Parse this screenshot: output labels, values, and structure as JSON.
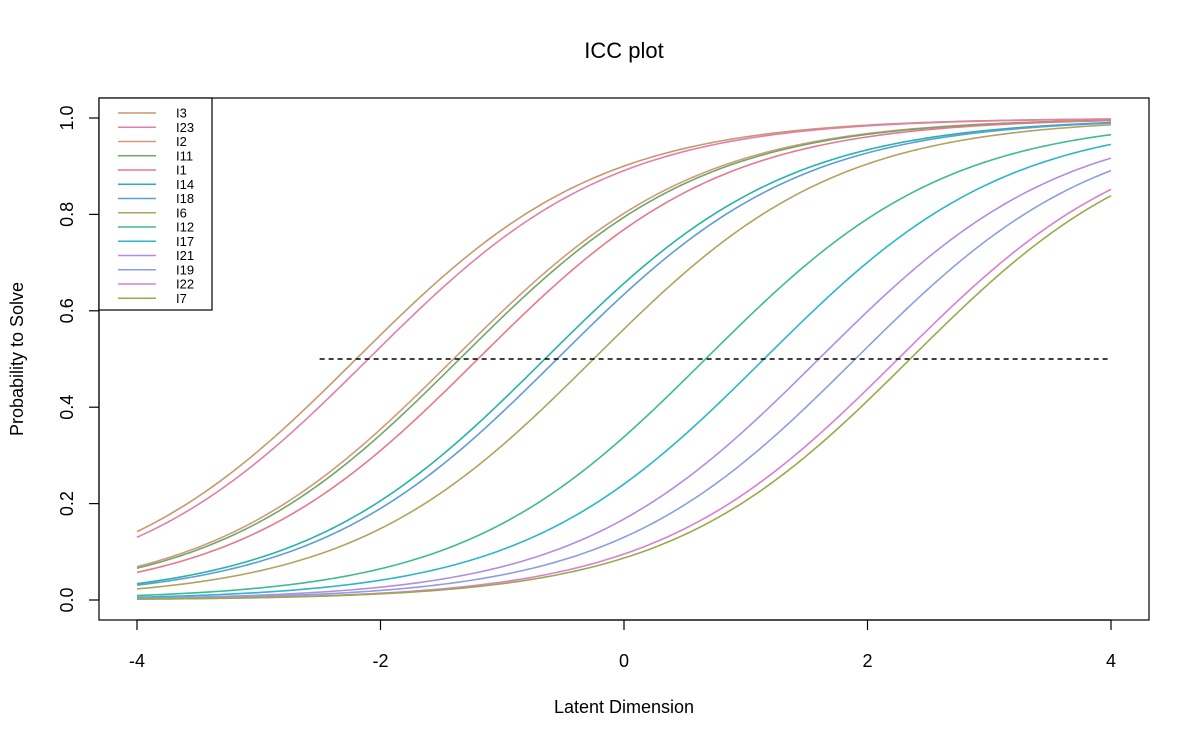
{
  "chart_data": {
    "type": "line",
    "title": "ICC plot",
    "xlabel": "Latent Dimension",
    "ylabel": "Probability to Solve",
    "xlim": [
      -4,
      4
    ],
    "ylim": [
      0,
      1
    ],
    "x_ticks": [
      -4,
      -2,
      0,
      2,
      4
    ],
    "y_ticks": [
      0.0,
      0.2,
      0.4,
      0.6,
      0.8,
      1.0
    ],
    "x_tick_labels": [
      "-4",
      "-2",
      "0",
      "2",
      "4"
    ],
    "y_tick_labels": [
      "0.0",
      "0.2",
      "0.4",
      "0.6",
      "0.8",
      "1.0"
    ],
    "model": "Rasch item characteristic curves: P(x) = 1 / (1 + exp(-(x - difficulty)))",
    "grid": false,
    "legend_position": "top-left",
    "reference_line": {
      "y": 0.5,
      "x_from": -2.5,
      "x_to": 4,
      "style": "dashed"
    },
    "series": [
      {
        "name": "I3",
        "difficulty": -2.2,
        "color": "#C49A6C"
      },
      {
        "name": "I23",
        "difficulty": -2.1,
        "color": "#E37FA8"
      },
      {
        "name": "I2",
        "difficulty": -1.4,
        "color": "#D29A7A"
      },
      {
        "name": "I11",
        "difficulty": -1.35,
        "color": "#6FA86A"
      },
      {
        "name": "I1",
        "difficulty": -1.2,
        "color": "#E8788A"
      },
      {
        "name": "I14",
        "difficulty": -0.65,
        "color": "#27B3A8"
      },
      {
        "name": "I18",
        "difficulty": -0.55,
        "color": "#5E9ED6"
      },
      {
        "name": "I6",
        "difficulty": -0.25,
        "color": "#B2A35E"
      },
      {
        "name": "I12",
        "difficulty": 0.67,
        "color": "#3DBB93"
      },
      {
        "name": "I17",
        "difficulty": 1.15,
        "color": "#2BB7C6"
      },
      {
        "name": "I21",
        "difficulty": 1.6,
        "color": "#B48CE0"
      },
      {
        "name": "I19",
        "difficulty": 1.9,
        "color": "#8C9FE0"
      },
      {
        "name": "I22",
        "difficulty": 2.25,
        "color": "#DA7FD0"
      },
      {
        "name": "I7",
        "difficulty": 2.35,
        "color": "#9AAA4A"
      }
    ]
  }
}
